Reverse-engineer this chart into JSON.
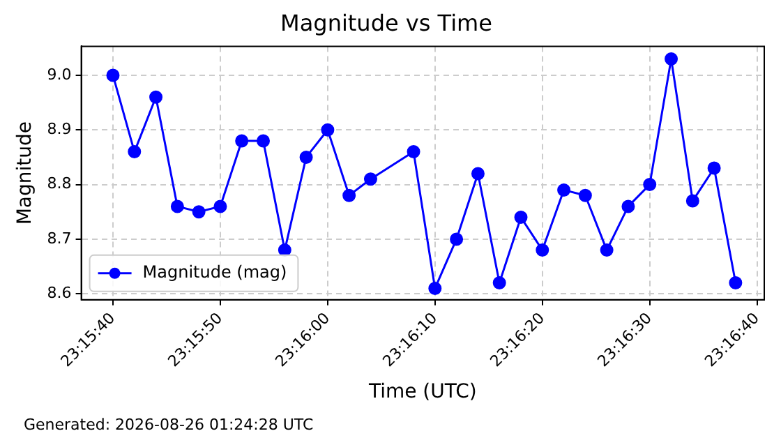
{
  "chart_data": {
    "type": "line",
    "title": "Magnitude vs Time",
    "xlabel": "Time (UTC)",
    "ylabel": "Magnitude",
    "x": [
      23.261111,
      23.261667,
      23.262222,
      23.262778,
      23.263333,
      23.263889,
      23.264444,
      23.265,
      23.265556,
      23.266111,
      23.266667,
      23.267222,
      23.267778,
      23.268889,
      23.269444,
      23.27,
      23.270556,
      23.271111,
      23.271667,
      23.272222,
      23.272778,
      23.273333,
      23.273889,
      23.274444,
      23.275,
      23.275556,
      23.276111,
      23.276667,
      23.277222
    ],
    "series": [
      {
        "name": "Magnitude (mag)",
        "color": "#0000ff",
        "values": [
          9.0,
          8.86,
          8.96,
          8.76,
          8.75,
          8.76,
          8.88,
          8.88,
          8.68,
          8.85,
          8.9,
          8.78,
          8.81,
          8.86,
          8.61,
          8.7,
          8.82,
          8.62,
          8.74,
          8.68,
          8.79,
          8.78,
          8.68,
          8.76,
          8.8,
          9.03,
          8.77,
          8.83,
          8.62
        ]
      }
    ],
    "xlim": [
      23.260292,
      23.277964
    ],
    "xticks": [
      {
        "value": 23.261111,
        "label": "23:15:40"
      },
      {
        "value": 23.263889,
        "label": "23:15:50"
      },
      {
        "value": 23.266667,
        "label": "23:16:00"
      },
      {
        "value": 23.269444,
        "label": "23:16:10"
      },
      {
        "value": 23.272222,
        "label": "23:16:20"
      },
      {
        "value": 23.275,
        "label": "23:16:30"
      },
      {
        "value": 23.277778,
        "label": "23:16:40"
      }
    ],
    "ylim": [
      8.589,
      9.053
    ],
    "yticks": [
      8.6,
      8.7,
      8.8,
      8.9,
      {
        "value": 9,
        "label": "9.0"
      }
    ],
    "grid": true,
    "legend": "bottom left",
    "marker": "circle",
    "line_style": "solid",
    "annotations": [
      "Generated: 2026-08-26 01:24:28 UTC"
    ]
  }
}
